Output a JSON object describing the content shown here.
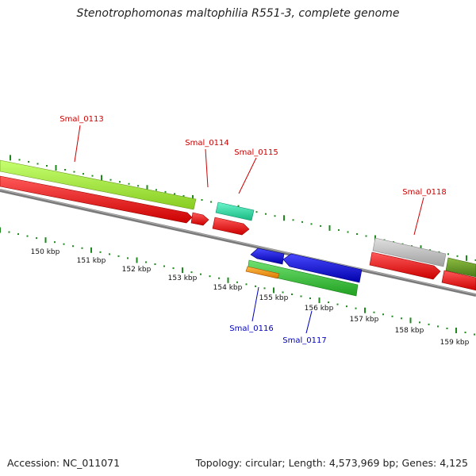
{
  "title": "Stenotrophomonas maltophilia R551-3, complete genome",
  "footer": {
    "accession": "Accession: NC_011071",
    "summary": "Topology: circular; Length: 4,573,969 bp; Genes: 4,125"
  },
  "scale_labels": [
    "150 kbp",
    "151 kbp",
    "152 kbp",
    "153 kbp",
    "154 kbp",
    "155 kbp",
    "156 kbp",
    "157 kbp",
    "158 kbp",
    "159 kbp"
  ],
  "gene_labels": {
    "forward": [
      "Smal_0113",
      "Smal_0114",
      "Smal_0115",
      "Smal_0118"
    ],
    "reverse": [
      "Smal_0116",
      "Smal_0117"
    ]
  },
  "colors": {
    "backbone": "#7a7a7a",
    "cds_red": "#ee1111",
    "lime": "#a6ee3c",
    "teal": "#2ee0a8",
    "grey": "#c0c0c0",
    "olive": "#6b9a2c",
    "blue": "#1010dd",
    "green": "#3cc03c",
    "orange": "#f29818",
    "tick_green": "#1e8a1e",
    "label_red": "#cc0000",
    "label_blue": "#0000bb"
  }
}
